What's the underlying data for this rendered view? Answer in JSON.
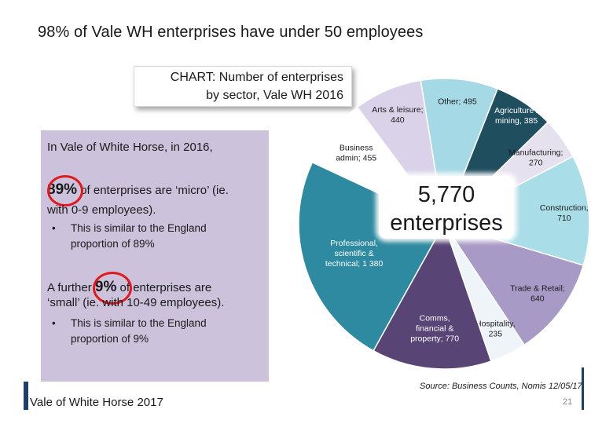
{
  "title": "98% of Vale WH enterprises have under 50 employees",
  "chart_caption": [
    "CHART: Number of enterprises",
    "by sector,  Vale WH 2016"
  ],
  "info": {
    "intro": "In Vale of White Horse, in 2016,",
    "micro_pct": "89%",
    "micro_text": " of enterprises are ‘micro’ (ie.",
    "micro_text2": "with 0-9 employees).",
    "bullet_dot": "•",
    "bullet1": [
      "This is similar to the England",
      "proportion of 89%"
    ],
    "small_prefix": "A further ",
    "small_pct": "9%",
    "small_text": " of enterprises are",
    "small_text2": "‘small’ (ie. with 10-49 employees).",
    "bullet2": [
      "This is similar to the England",
      "proportion of 9%"
    ]
  },
  "center_label": [
    "5,770",
    "enterprises"
  ],
  "footer": {
    "left": "Vale of White Horse 2017",
    "source": "Source: Business Counts, Nomis 12/05/17",
    "page": "21"
  },
  "chart_data": {
    "type": "pie",
    "title": "CHART: Number of enterprises by sector,  Vale WH 2016",
    "total_label": "5,770 enterprises",
    "slices": [
      {
        "name": "Agriculture / mining",
        "value": 385,
        "color": "#1f4e5f",
        "label": [
          "Agriculture /",
          "mining, 385"
        ],
        "white": true
      },
      {
        "name": "Manufacturing",
        "value": 270,
        "color": "#e6e1ee",
        "label": [
          "Manufacturing;",
          "270"
        ]
      },
      {
        "name": "Construction",
        "value": 710,
        "color": "#a9dde8",
        "label": [
          "Construction,",
          "710"
        ]
      },
      {
        "name": "Trade & Retail",
        "value": 640,
        "color": "#a89ac6",
        "label": [
          "Trade & Retail;",
          "640"
        ]
      },
      {
        "name": "Hospitality",
        "value": 235,
        "color": "#eef4f7",
        "label": [
          "Hospitality,",
          "235"
        ]
      },
      {
        "name": "Comms, financial & property",
        "value": 770,
        "color": "#584475",
        "label": [
          "Comms,",
          "financial &",
          "property; 770"
        ],
        "white": true
      },
      {
        "name": "Professional, scientific & technical",
        "value": 1380,
        "color": "#2e8aa0",
        "label": [
          "Professional,",
          "scientific &",
          "technical; 1 380"
        ],
        "white": true
      },
      {
        "name": "Business admin",
        "value": 455,
        "color": "#ffffff",
        "label": [
          "Business",
          "admin; 455"
        ]
      },
      {
        "name": "Arts & leisure",
        "value": 440,
        "color": "#d9d2e8",
        "label": [
          "Arts & leisure;",
          "440"
        ]
      },
      {
        "name": "Other",
        "value": 495,
        "color": "#a6d9e6",
        "label": [
          "Other; 495"
        ]
      }
    ]
  }
}
